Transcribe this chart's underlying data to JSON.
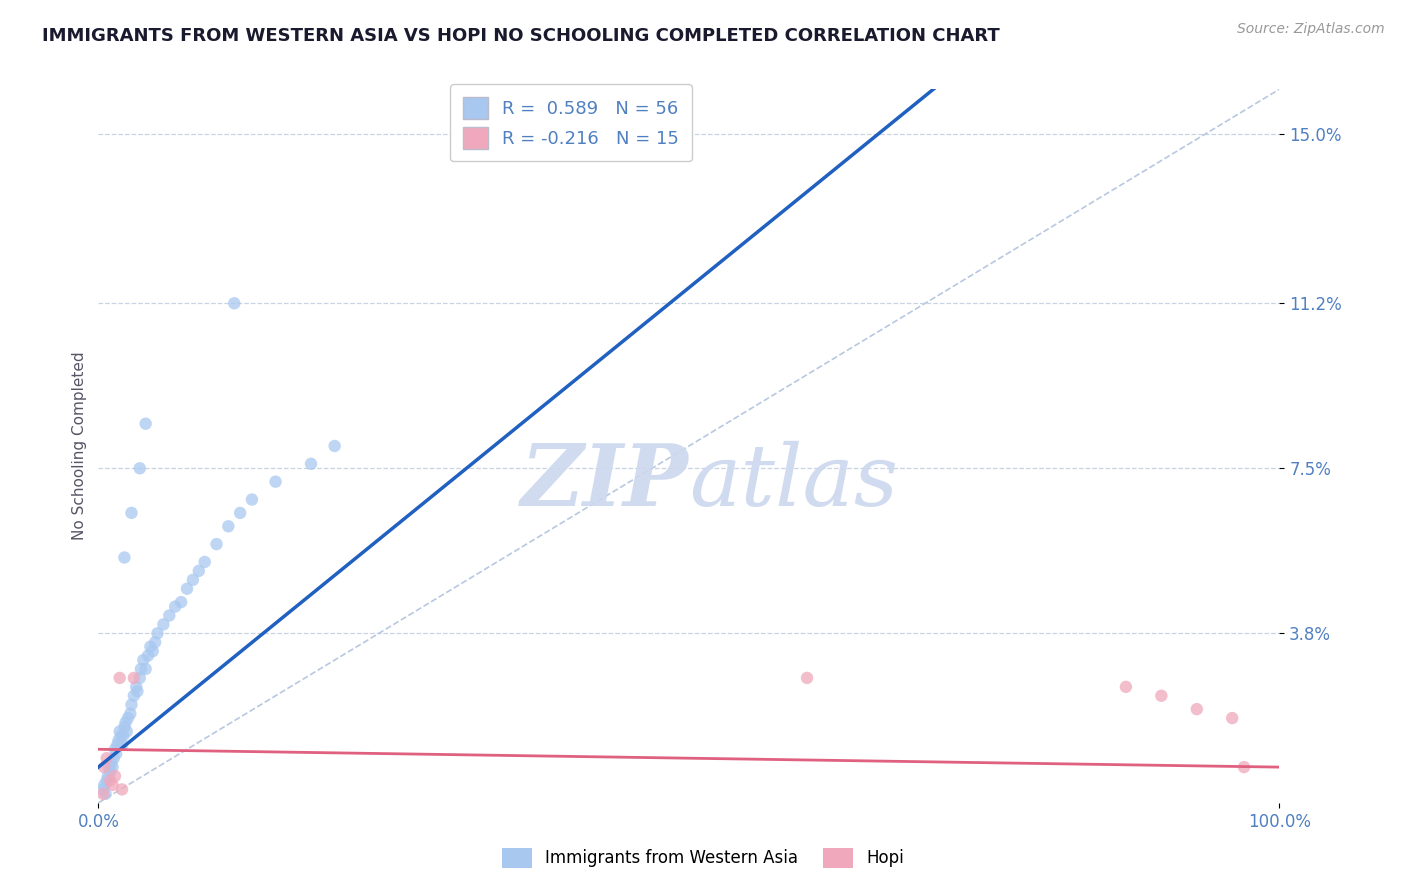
{
  "title": "IMMIGRANTS FROM WESTERN ASIA VS HOPI NO SCHOOLING COMPLETED CORRELATION CHART",
  "source_text": "Source: ZipAtlas.com",
  "ylabel": "No Schooling Completed",
  "x_tick_labels": [
    "0.0%",
    "100.0%"
  ],
  "y_tick_values": [
    0.038,
    0.075,
    0.112,
    0.15
  ],
  "y_tick_labels": [
    "3.8%",
    "7.5%",
    "11.2%",
    "15.0%"
  ],
  "xlim": [
    0.0,
    1.0
  ],
  "ylim": [
    0.0,
    0.16
  ],
  "legend_labels": [
    "Immigrants from Western Asia",
    "Hopi"
  ],
  "r_blue": "0.589",
  "n_blue": "56",
  "r_pink": "-0.216",
  "n_pink": "15",
  "color_blue": "#a8c8f0",
  "color_pink": "#f0a8bc",
  "line_blue": "#2060c0",
  "line_pink": "#e06080",
  "line_diag_color": "#b8c8e0",
  "watermark_color": "#ccd8ee",
  "background_color": "#ffffff",
  "grid_color": "#c8d4e4",
  "title_color": "#1a1a2e",
  "axis_color": "#5080c0",
  "blue_scatter": [
    [
      0.004,
      0.003
    ],
    [
      0.005,
      0.004
    ],
    [
      0.006,
      0.002
    ],
    [
      0.007,
      0.005
    ],
    [
      0.008,
      0.006
    ],
    [
      0.009,
      0.008
    ],
    [
      0.01,
      0.007
    ],
    [
      0.011,
      0.009
    ],
    [
      0.012,
      0.008
    ],
    [
      0.013,
      0.01
    ],
    [
      0.014,
      0.012
    ],
    [
      0.015,
      0.011
    ],
    [
      0.016,
      0.013
    ],
    [
      0.017,
      0.014
    ],
    [
      0.018,
      0.016
    ],
    [
      0.019,
      0.015
    ],
    [
      0.02,
      0.013
    ],
    [
      0.021,
      0.015
    ],
    [
      0.022,
      0.017
    ],
    [
      0.023,
      0.018
    ],
    [
      0.024,
      0.016
    ],
    [
      0.025,
      0.019
    ],
    [
      0.027,
      0.02
    ],
    [
      0.028,
      0.022
    ],
    [
      0.03,
      0.024
    ],
    [
      0.032,
      0.026
    ],
    [
      0.033,
      0.025
    ],
    [
      0.035,
      0.028
    ],
    [
      0.036,
      0.03
    ],
    [
      0.038,
      0.032
    ],
    [
      0.04,
      0.03
    ],
    [
      0.042,
      0.033
    ],
    [
      0.044,
      0.035
    ],
    [
      0.046,
      0.034
    ],
    [
      0.048,
      0.036
    ],
    [
      0.05,
      0.038
    ],
    [
      0.055,
      0.04
    ],
    [
      0.06,
      0.042
    ],
    [
      0.065,
      0.044
    ],
    [
      0.07,
      0.045
    ],
    [
      0.075,
      0.048
    ],
    [
      0.08,
      0.05
    ],
    [
      0.085,
      0.052
    ],
    [
      0.09,
      0.054
    ],
    [
      0.1,
      0.058
    ],
    [
      0.11,
      0.062
    ],
    [
      0.12,
      0.065
    ],
    [
      0.13,
      0.068
    ],
    [
      0.15,
      0.072
    ],
    [
      0.18,
      0.076
    ],
    [
      0.2,
      0.08
    ],
    [
      0.022,
      0.055
    ],
    [
      0.028,
      0.065
    ],
    [
      0.035,
      0.075
    ],
    [
      0.04,
      0.085
    ],
    [
      0.115,
      0.112
    ]
  ],
  "pink_scatter": [
    [
      0.004,
      0.002
    ],
    [
      0.005,
      0.008
    ],
    [
      0.007,
      0.01
    ],
    [
      0.01,
      0.005
    ],
    [
      0.012,
      0.004
    ],
    [
      0.014,
      0.006
    ],
    [
      0.018,
      0.028
    ],
    [
      0.02,
      0.003
    ],
    [
      0.03,
      0.028
    ],
    [
      0.6,
      0.028
    ],
    [
      0.87,
      0.026
    ],
    [
      0.9,
      0.024
    ],
    [
      0.93,
      0.021
    ],
    [
      0.96,
      0.019
    ],
    [
      0.97,
      0.008
    ]
  ]
}
